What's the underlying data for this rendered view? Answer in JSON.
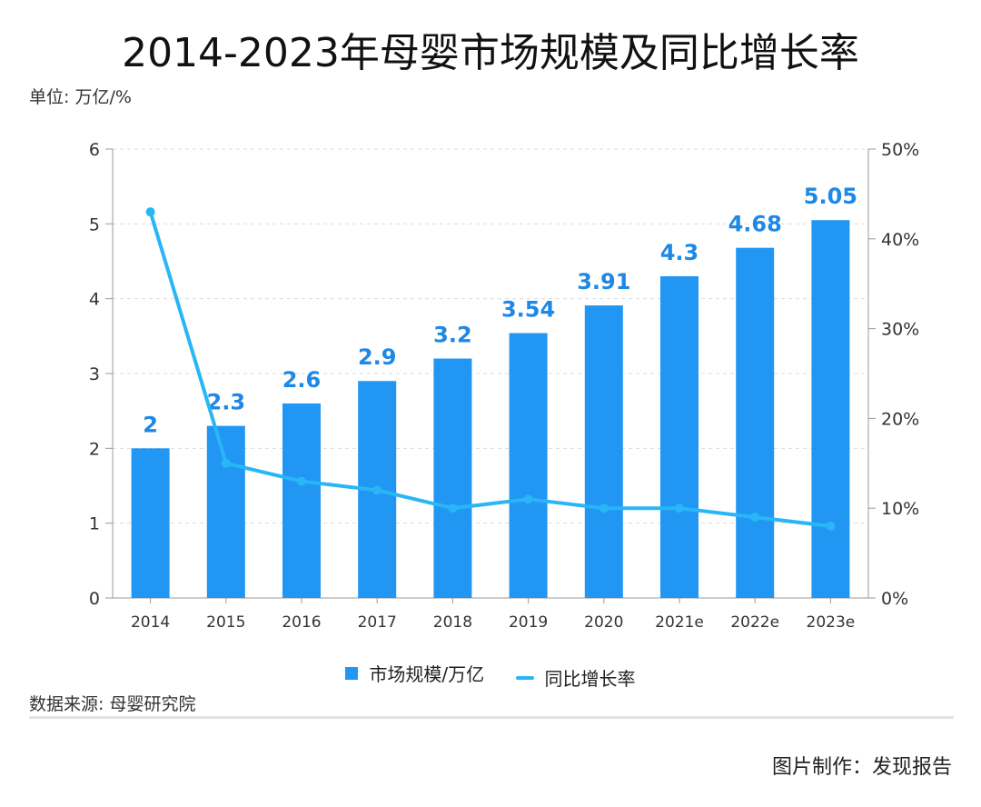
{
  "title": "2014-2023年母婴市场规模及同比增长率",
  "unit_label": "单位: 万亿/%",
  "source": "数据来源: 母婴研究院",
  "credit": "图片制作：发现报告",
  "colors": {
    "bar": "#2196f3",
    "line": "#29b6f6",
    "bar_label": "#1e88e5"
  },
  "chart_data": {
    "type": "bar",
    "categories": [
      "2014",
      "2015",
      "2016",
      "2017",
      "2018",
      "2019",
      "2020",
      "2021e",
      "2022e",
      "2023e"
    ],
    "series": [
      {
        "name": "市场规模/万亿",
        "type": "bar",
        "axis": "left",
        "values": [
          2,
          2.3,
          2.6,
          2.9,
          3.2,
          3.54,
          3.91,
          4.3,
          4.68,
          5.05
        ],
        "labels": [
          "2",
          "2.3",
          "2.6",
          "2.9",
          "3.2",
          "3.54",
          "3.91",
          "4.3",
          "4.68",
          "5.05"
        ]
      },
      {
        "name": "同比增长率",
        "type": "line",
        "axis": "right",
        "values": [
          43,
          15,
          13,
          12,
          10,
          11,
          10,
          10,
          9,
          8
        ]
      }
    ],
    "y_left": {
      "lim": [
        0,
        6
      ],
      "ticks": [
        "0",
        "1",
        "2",
        "3",
        "4",
        "5",
        "6"
      ]
    },
    "y_right": {
      "lim": [
        0,
        50
      ],
      "ticks": [
        "0%",
        "10%",
        "20%",
        "30%",
        "40%",
        "50%"
      ]
    },
    "grid": "dashed-horizontal",
    "legend_position": "bottom-center"
  }
}
